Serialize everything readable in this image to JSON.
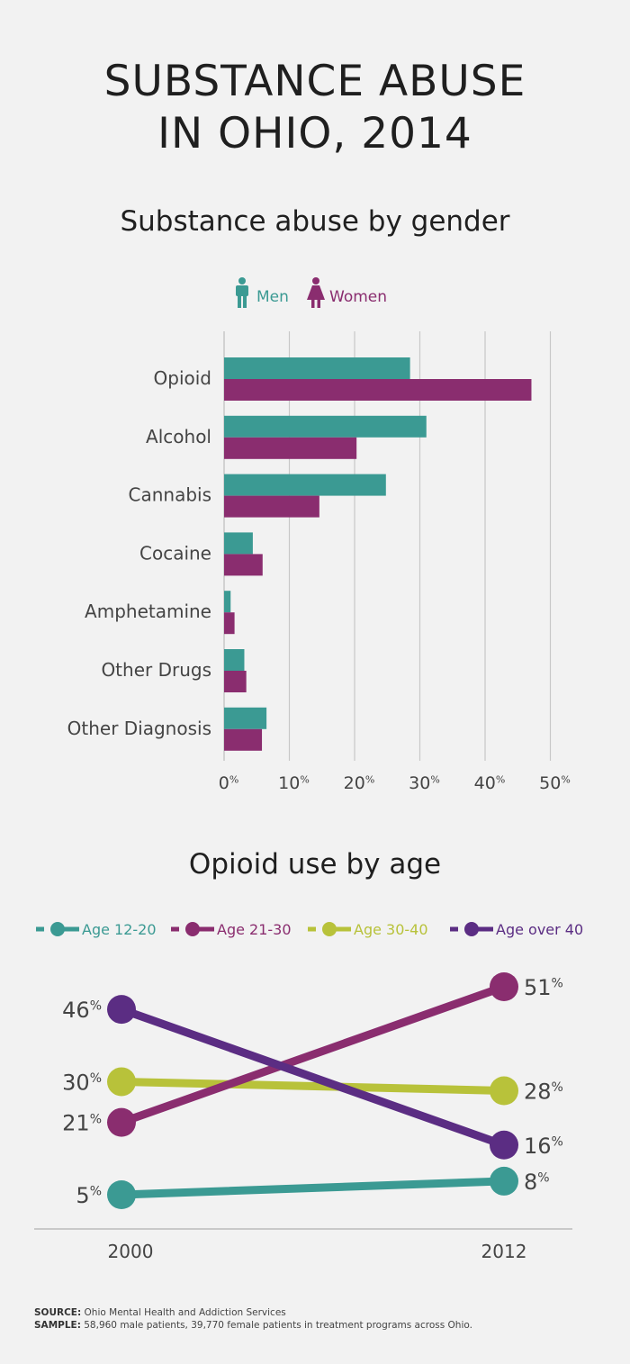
{
  "title_lines": [
    "SUBSTANCE ABUSE",
    "IN OHIO, 2014"
  ],
  "colors": {
    "men": "#3b9a93",
    "women": "#8a2d6f",
    "age_12_20": "#3b9a93",
    "age_21_30": "#8a2d6f",
    "age_30_40": "#b8c23a",
    "age_over_40": "#5b2d83"
  },
  "chart_data": [
    {
      "type": "bar",
      "orientation": "horizontal",
      "title": "Substance abuse by gender",
      "categories": [
        "Opioid",
        "Alcohol",
        "Cannabis",
        "Cocaine",
        "Amphetamine",
        "Other Drugs",
        "Other Diagnosis"
      ],
      "series": [
        {
          "name": "Men",
          "values": [
            28.5,
            31,
            24.8,
            4.4,
            1,
            3.1,
            6.5
          ]
        },
        {
          "name": "Women",
          "values": [
            47.1,
            20.3,
            14.6,
            5.9,
            1.6,
            3.4,
            5.8
          ]
        }
      ],
      "x_ticks": [
        "0%",
        "10%",
        "20%",
        "30%",
        "40%",
        "50%"
      ],
      "xlim": [
        0,
        50
      ],
      "legend": "top-center",
      "grid": true
    },
    {
      "type": "line",
      "title": "Opioid use by age",
      "x": [
        "2000",
        "2012"
      ],
      "series": [
        {
          "name": "Age 12-20",
          "values": [
            5,
            8
          ],
          "labels": [
            "5%",
            "8%"
          ]
        },
        {
          "name": "Age 21-30",
          "values": [
            21,
            51
          ],
          "labels": [
            "21%",
            "51%"
          ]
        },
        {
          "name": "Age 30-40",
          "values": [
            30,
            28
          ],
          "labels": [
            "30%",
            "28%"
          ]
        },
        {
          "name": "Age over 40",
          "values": [
            46,
            16
          ],
          "labels": [
            "46%",
            "16%"
          ]
        }
      ],
      "legend": "top"
    }
  ],
  "footnotes": {
    "source_label": "SOURCE:",
    "source_text": "Ohio Mental Health and Addiction Services",
    "sample_label": "SAMPLE:",
    "sample_text": "58,960 male patients, 39,770 female patients in treatment programs across Ohio."
  }
}
